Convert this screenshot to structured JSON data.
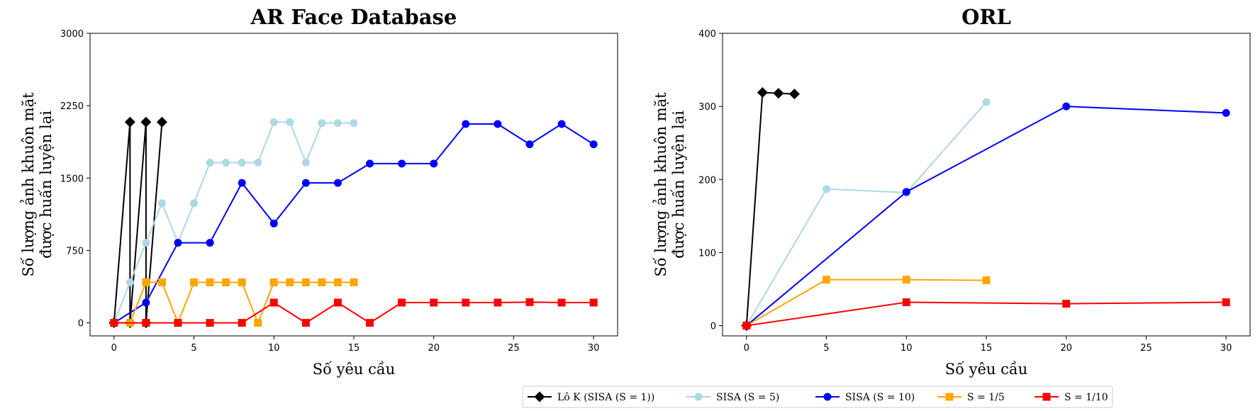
{
  "chart_data": [
    {
      "type": "line",
      "title": "AR Face Database",
      "xlabel": "Số yêu cầu",
      "ylabel": [
        "Số lượng ảnh khuôn mặt",
        "được huấn luyện lại"
      ],
      "xlim": [
        -1.5,
        31.5
      ],
      "ylim": [
        -135,
        3000
      ],
      "xticks": [
        0,
        5,
        10,
        15,
        20,
        25,
        30
      ],
      "yticks": [
        0,
        750,
        1500,
        2250,
        3000
      ],
      "series": [
        {
          "name": "Lô K (SISA (S = 1))",
          "color": "#000000",
          "marker": "diamond",
          "x": [
            0,
            1,
            1,
            2,
            2,
            3
          ],
          "y": [
            0,
            2080,
            0,
            2080,
            0,
            2080
          ]
        },
        {
          "name": "SISA (S = 5)",
          "color": "#add8e6",
          "marker": "circle",
          "x": [
            0,
            1,
            2,
            3,
            4,
            5,
            6,
            7,
            8,
            9,
            10,
            11,
            12,
            13,
            14,
            15
          ],
          "y": [
            0,
            420,
            830,
            1240,
            830,
            1240,
            1660,
            1660,
            1660,
            1660,
            2080,
            2080,
            1660,
            2070,
            2070,
            2070
          ]
        },
        {
          "name": "SISA (S = 10)",
          "color": "#0000ff",
          "marker": "circle",
          "x": [
            0,
            2,
            4,
            6,
            8,
            10,
            12,
            14,
            16,
            18,
            20,
            22,
            24,
            26,
            28,
            30
          ],
          "y": [
            0,
            210,
            830,
            830,
            1450,
            1030,
            1450,
            1450,
            1650,
            1650,
            1650,
            2060,
            2060,
            1850,
            2060,
            1850
          ]
        },
        {
          "name": "S = 1/5",
          "color": "#ffa500",
          "marker": "square",
          "x": [
            0,
            1,
            2,
            3,
            4,
            5,
            6,
            7,
            8,
            9,
            10,
            11,
            12,
            13,
            14,
            15
          ],
          "y": [
            0,
            0,
            420,
            420,
            0,
            420,
            420,
            420,
            420,
            0,
            420,
            420,
            420,
            420,
            420,
            420
          ]
        },
        {
          "name": "S = 1/10",
          "color": "#ff0000",
          "marker": "square",
          "x": [
            0,
            2,
            4,
            6,
            8,
            10,
            12,
            14,
            16,
            18,
            20,
            22,
            24,
            26,
            28,
            30
          ],
          "y": [
            0,
            0,
            0,
            0,
            0,
            210,
            0,
            210,
            0,
            210,
            210,
            210,
            210,
            215,
            210,
            210
          ]
        }
      ]
    },
    {
      "type": "line",
      "title": "ORL",
      "xlabel": "Số yêu cầu",
      "ylabel": [
        "Số lượng ảnh khuôn mặt",
        "được huấn luyện lại"
      ],
      "xlim": [
        -1.5,
        31.5
      ],
      "ylim": [
        -14,
        400
      ],
      "xticks": [
        0,
        5,
        10,
        15,
        20,
        25,
        30
      ],
      "yticks": [
        0,
        100,
        200,
        300,
        400
      ],
      "series": [
        {
          "name": "Lô K (SISA (S = 1))",
          "color": "#000000",
          "marker": "diamond",
          "x": [
            0,
            1,
            2,
            3
          ],
          "y": [
            0,
            319,
            318,
            317
          ]
        },
        {
          "name": "SISA (S = 5)",
          "color": "#add8e6",
          "marker": "circle",
          "x": [
            0,
            5,
            10,
            15
          ],
          "y": [
            0,
            187,
            182,
            306
          ]
        },
        {
          "name": "SISA (S = 10)",
          "color": "#0000ff",
          "marker": "circle",
          "x": [
            0,
            10,
            20,
            30
          ],
          "y": [
            0,
            183,
            300,
            291
          ]
        },
        {
          "name": "S = 1/5",
          "color": "#ffa500",
          "marker": "square",
          "x": [
            0,
            5,
            10,
            15
          ],
          "y": [
            0,
            63,
            63,
            62
          ]
        },
        {
          "name": "S = 1/10",
          "color": "#ff0000",
          "marker": "square",
          "x": [
            0,
            10,
            20,
            30
          ],
          "y": [
            0,
            32,
            30,
            32
          ]
        }
      ]
    }
  ],
  "legend": {
    "placement": "bottom-center",
    "entries": [
      "Lô K (SISA (S = 1))",
      "SISA (S = 5)",
      "SISA (S = 10)",
      "S = 1/5",
      "S = 1/10"
    ]
  }
}
